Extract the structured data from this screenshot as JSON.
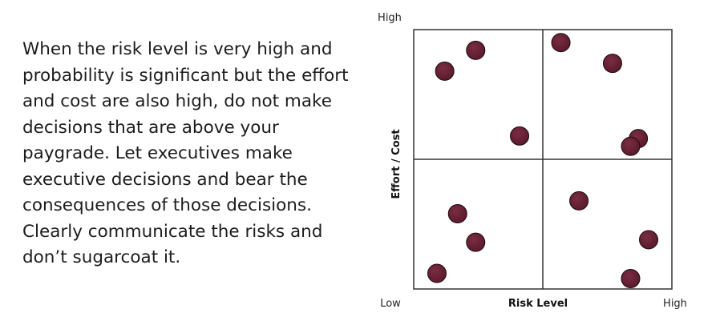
{
  "slide": {
    "paragraph": "When the risk level is very high and probability is significant but the effort and cost are also high, do not make decisions that are above your paygrade. Let executives make executive decisions and bear the consequences of those decisions. Clearly communicate the risks and don’t sugarcoat it."
  },
  "chart_data": {
    "type": "scatter",
    "title": "",
    "xlabel": "Risk Level",
    "ylabel": "Effort / Cost",
    "x_low_label": "Low",
    "x_high_label": "High",
    "y_high_label": "High",
    "xlim": [
      0,
      1
    ],
    "ylim": [
      0,
      1
    ],
    "quadrant_split": {
      "x": 0.5,
      "y": 0.5
    },
    "grid": false,
    "point_color": "#5b1a2c",
    "points": [
      {
        "x": 0.12,
        "y": 0.84
      },
      {
        "x": 0.24,
        "y": 0.92
      },
      {
        "x": 0.41,
        "y": 0.59
      },
      {
        "x": 0.57,
        "y": 0.95
      },
      {
        "x": 0.77,
        "y": 0.87
      },
      {
        "x": 0.87,
        "y": 0.58
      },
      {
        "x": 0.84,
        "y": 0.55
      },
      {
        "x": 0.17,
        "y": 0.29
      },
      {
        "x": 0.24,
        "y": 0.18
      },
      {
        "x": 0.09,
        "y": 0.06
      },
      {
        "x": 0.64,
        "y": 0.34
      },
      {
        "x": 0.91,
        "y": 0.19
      },
      {
        "x": 0.84,
        "y": 0.04
      }
    ]
  }
}
